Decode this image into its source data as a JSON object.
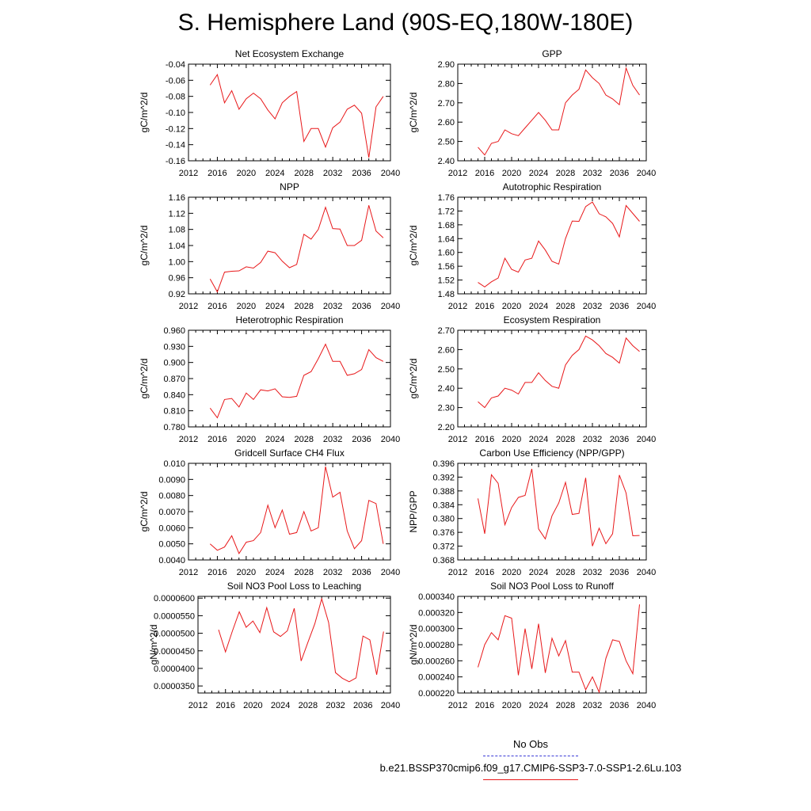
{
  "title": "S. Hemisphere Land (90S-EQ,180W-180E)",
  "legend": {
    "obs_label": "No Obs",
    "obs_color": "#3b3bd6",
    "run_label": "b.e21.BSSP370cmip6.f09_g17.CMIP6-SSP3-7.0-SSP1-2.6Lu.103",
    "run_color": "#e8181a"
  },
  "chart_data": [
    {
      "type": "line",
      "title": "Net Ecosystem Exchange",
      "ylabel": "gC/m^2/d",
      "xlim": [
        2012,
        2040
      ],
      "xticks": [
        "2012",
        "2016",
        "2020",
        "2024",
        "2028",
        "2032",
        "2036",
        "2040"
      ],
      "ylim": [
        -0.16,
        -0.04
      ],
      "yticks": [
        "-0.04",
        "-0.06",
        "-0.08",
        "-0.10",
        "-0.12",
        "-0.14",
        "-0.16"
      ],
      "series": [
        {
          "x": [
            2015,
            2016,
            2017,
            2018,
            2019,
            2020,
            2021,
            2022,
            2023,
            2024,
            2025,
            2026,
            2027,
            2028,
            2029,
            2030,
            2031,
            2032,
            2033,
            2034,
            2035,
            2036,
            2037,
            2038,
            2039
          ],
          "values": [
            -0.066,
            -0.053,
            -0.088,
            -0.073,
            -0.096,
            -0.083,
            -0.076,
            -0.083,
            -0.097,
            -0.108,
            -0.088,
            -0.08,
            -0.074,
            -0.136,
            -0.12,
            -0.12,
            -0.143,
            -0.119,
            -0.112,
            -0.096,
            -0.091,
            -0.101,
            -0.156,
            -0.093,
            -0.08
          ]
        }
      ]
    },
    {
      "type": "line",
      "title": "GPP",
      "ylabel": "gC/m^2/d",
      "xlim": [
        2012,
        2040
      ],
      "xticks": [
        "2012",
        "2016",
        "2020",
        "2024",
        "2028",
        "2032",
        "2036",
        "2040"
      ],
      "ylim": [
        2.4,
        2.9
      ],
      "yticks": [
        "2.90",
        "2.80",
        "2.70",
        "2.60",
        "2.50",
        "2.40"
      ],
      "series": [
        {
          "x": [
            2015,
            2016,
            2017,
            2018,
            2019,
            2020,
            2021,
            2022,
            2023,
            2024,
            2025,
            2026,
            2027,
            2028,
            2029,
            2030,
            2031,
            2032,
            2033,
            2034,
            2035,
            2036,
            2037,
            2038,
            2039
          ],
          "values": [
            2.47,
            2.43,
            2.49,
            2.5,
            2.56,
            2.54,
            2.53,
            2.57,
            2.61,
            2.65,
            2.61,
            2.56,
            2.56,
            2.7,
            2.74,
            2.77,
            2.87,
            2.83,
            2.8,
            2.74,
            2.72,
            2.69,
            2.88,
            2.79,
            2.74
          ]
        }
      ]
    },
    {
      "type": "line",
      "title": "NPP",
      "ylabel": "gC/m^2/d",
      "xlim": [
        2012,
        2040
      ],
      "xticks": [
        "2012",
        "2016",
        "2020",
        "2024",
        "2028",
        "2032",
        "2036",
        "2040"
      ],
      "ylim": [
        0.92,
        1.16
      ],
      "yticks": [
        "1.16",
        "1.12",
        "1.08",
        "1.04",
        "1.00",
        "0.96",
        "0.92"
      ],
      "series": [
        {
          "x": [
            2015,
            2016,
            2017,
            2018,
            2019,
            2020,
            2021,
            2022,
            2023,
            2024,
            2025,
            2026,
            2027,
            2028,
            2029,
            2030,
            2031,
            2032,
            2033,
            2034,
            2035,
            2036,
            2037,
            2038,
            2039
          ],
          "values": [
            0.957,
            0.925,
            0.974,
            0.976,
            0.977,
            0.987,
            0.984,
            0.998,
            1.026,
            1.022,
            1.001,
            0.985,
            0.993,
            1.068,
            1.056,
            1.08,
            1.135,
            1.082,
            1.081,
            1.04,
            1.04,
            1.053,
            1.14,
            1.076,
            1.059
          ]
        }
      ]
    },
    {
      "type": "line",
      "title": "Autotrophic Respiration",
      "ylabel": "gC/m^2/d",
      "xlim": [
        2012,
        2040
      ],
      "xticks": [
        "2012",
        "2016",
        "2020",
        "2024",
        "2028",
        "2032",
        "2036",
        "2040"
      ],
      "ylim": [
        1.48,
        1.76
      ],
      "yticks": [
        "1.76",
        "1.72",
        "1.68",
        "1.64",
        "1.60",
        "1.56",
        "1.52",
        "1.48"
      ],
      "series": [
        {
          "x": [
            2015,
            2016,
            2017,
            2018,
            2019,
            2020,
            2021,
            2022,
            2023,
            2024,
            2025,
            2026,
            2027,
            2028,
            2029,
            2030,
            2031,
            2032,
            2033,
            2034,
            2035,
            2036,
            2037,
            2038,
            2039
          ],
          "values": [
            1.513,
            1.5,
            1.515,
            1.526,
            1.583,
            1.551,
            1.543,
            1.578,
            1.583,
            1.633,
            1.607,
            1.574,
            1.566,
            1.64,
            1.691,
            1.69,
            1.733,
            1.746,
            1.712,
            1.703,
            1.684,
            1.645,
            1.736,
            1.713,
            1.69
          ]
        }
      ]
    },
    {
      "type": "line",
      "title": "Heterotrophic Respiration",
      "ylabel": "gC/m^2/d",
      "xlim": [
        2012,
        2040
      ],
      "xticks": [
        "2012",
        "2016",
        "2020",
        "2024",
        "2028",
        "2032",
        "2036",
        "2040"
      ],
      "ylim": [
        0.78,
        0.96
      ],
      "yticks": [
        "0.960",
        "0.930",
        "0.900",
        "0.870",
        "0.840",
        "0.810",
        "0.780"
      ],
      "series": [
        {
          "x": [
            2015,
            2016,
            2017,
            2018,
            2019,
            2020,
            2021,
            2022,
            2023,
            2024,
            2025,
            2026,
            2027,
            2028,
            2029,
            2030,
            2031,
            2032,
            2033,
            2034,
            2035,
            2036,
            2037,
            2038,
            2039
          ],
          "values": [
            0.815,
            0.797,
            0.831,
            0.833,
            0.817,
            0.843,
            0.831,
            0.849,
            0.847,
            0.851,
            0.836,
            0.835,
            0.837,
            0.876,
            0.883,
            0.907,
            0.934,
            0.902,
            0.902,
            0.876,
            0.879,
            0.887,
            0.924,
            0.909,
            0.902
          ]
        }
      ]
    },
    {
      "type": "line",
      "title": "Ecosystem Respiration",
      "ylabel": "gC/m^2/d",
      "xlim": [
        2012,
        2040
      ],
      "xticks": [
        "2012",
        "2016",
        "2020",
        "2024",
        "2028",
        "2032",
        "2036",
        "2040"
      ],
      "ylim": [
        2.2,
        2.7
      ],
      "yticks": [
        "2.70",
        "2.60",
        "2.50",
        "2.40",
        "2.30",
        "2.20"
      ],
      "series": [
        {
          "x": [
            2015,
            2016,
            2017,
            2018,
            2019,
            2020,
            2021,
            2022,
            2023,
            2024,
            2025,
            2026,
            2027,
            2028,
            2029,
            2030,
            2031,
            2032,
            2033,
            2034,
            2035,
            2036,
            2037,
            2038,
            2039
          ],
          "values": [
            2.33,
            2.3,
            2.35,
            2.36,
            2.4,
            2.39,
            2.37,
            2.43,
            2.43,
            2.48,
            2.44,
            2.41,
            2.4,
            2.52,
            2.57,
            2.6,
            2.67,
            2.65,
            2.62,
            2.58,
            2.56,
            2.53,
            2.66,
            2.62,
            2.59
          ]
        }
      ]
    },
    {
      "type": "line",
      "title": "Gridcell Surface CH4 Flux",
      "ylabel": "gC/m^2/d",
      "xlim": [
        2012,
        2040
      ],
      "xticks": [
        "2012",
        "2016",
        "2020",
        "2024",
        "2028",
        "2032",
        "2036",
        "2040"
      ],
      "ylim": [
        0.004,
        0.01
      ],
      "yticks": [
        "0.010",
        "0.0090",
        "0.0080",
        "0.0070",
        "0.0060",
        "0.0050",
        "0.0040"
      ],
      "series": [
        {
          "x": [
            2015,
            2016,
            2017,
            2018,
            2019,
            2020,
            2021,
            2022,
            2023,
            2024,
            2025,
            2026,
            2027,
            2028,
            2029,
            2030,
            2031,
            2032,
            2033,
            2034,
            2035,
            2036,
            2037,
            2038,
            2039
          ],
          "values": [
            0.005,
            0.0046,
            0.0048,
            0.0055,
            0.0044,
            0.0051,
            0.0052,
            0.0057,
            0.0074,
            0.006,
            0.0071,
            0.0056,
            0.0057,
            0.007,
            0.0058,
            0.006,
            0.0098,
            0.0079,
            0.0082,
            0.0058,
            0.0047,
            0.0052,
            0.0077,
            0.0075,
            0.005
          ]
        }
      ]
    },
    {
      "type": "line",
      "title": "Carbon Use Efficiency (NPP/GPP)",
      "ylabel": "NPP/GPP",
      "xlim": [
        2012,
        2040
      ],
      "xticks": [
        "2012",
        "2016",
        "2020",
        "2024",
        "2028",
        "2032",
        "2036",
        "2040"
      ],
      "ylim": [
        0.368,
        0.396
      ],
      "yticks": [
        "0.396",
        "0.392",
        "0.388",
        "0.384",
        "0.380",
        "0.376",
        "0.372",
        "0.368"
      ],
      "series": [
        {
          "x": [
            2015,
            2016,
            2017,
            2018,
            2019,
            2020,
            2021,
            2022,
            2023,
            2024,
            2025,
            2026,
            2027,
            2028,
            2029,
            2030,
            2031,
            2032,
            2033,
            2034,
            2035,
            2036,
            2037,
            2038,
            2039
          ],
          "values": [
            0.3858,
            0.3756,
            0.3927,
            0.3902,
            0.3782,
            0.3832,
            0.3861,
            0.3867,
            0.3944,
            0.377,
            0.3741,
            0.3808,
            0.3845,
            0.3905,
            0.3812,
            0.3815,
            0.3918,
            0.372,
            0.3772,
            0.3727,
            0.3756,
            0.3926,
            0.3874,
            0.375,
            0.3751
          ]
        }
      ]
    },
    {
      "type": "line",
      "title": "Soil NO3 Pool Loss to Leaching",
      "ylabel": "gN/m^2/d",
      "xlim": [
        2012,
        2040
      ],
      "xticks": [
        "2012",
        "2016",
        "2020",
        "2024",
        "2028",
        "2032",
        "2036",
        "2040"
      ],
      "ylim": [
        3.3e-05,
        6.05e-05
      ],
      "yticks": [
        "0.0000600",
        "0.0000550",
        "0.0000500",
        "0.0000450",
        "0.0000400",
        "0.0000350"
      ],
      "series": [
        {
          "x": [
            2015,
            2016,
            2017,
            2018,
            2019,
            2020,
            2021,
            2022,
            2023,
            2024,
            2025,
            2026,
            2027,
            2028,
            2029,
            2030,
            2031,
            2032,
            2033,
            2034,
            2035,
            2036,
            2037,
            2038,
            2039
          ],
          "values": [
            5.1e-05,
            4.47e-05,
            5.06e-05,
            5.61e-05,
            5.17e-05,
            5.35e-05,
            5.02e-05,
            5.73e-05,
            5.04e-05,
            4.91e-05,
            5.07e-05,
            5.71e-05,
            4.21e-05,
            4.75e-05,
            5.27e-05,
            5.98e-05,
            5.31e-05,
            3.88e-05,
            3.72e-05,
            3.62e-05,
            3.73e-05,
            4.92e-05,
            4.81e-05,
            3.82e-05,
            5.05e-05
          ]
        }
      ]
    },
    {
      "type": "line",
      "title": "Soil NO3 Pool Loss to Runoff",
      "ylabel": "gN/m^2/d",
      "xlim": [
        2012,
        2040
      ],
      "xticks": [
        "2012",
        "2016",
        "2020",
        "2024",
        "2028",
        "2032",
        "2036",
        "2040"
      ],
      "ylim": [
        0.00022,
        0.00034
      ],
      "yticks": [
        "0.000340",
        "0.000320",
        "0.000300",
        "0.000280",
        "0.000260",
        "0.000240",
        "0.000220"
      ],
      "series": [
        {
          "x": [
            2015,
            2016,
            2017,
            2018,
            2019,
            2020,
            2021,
            2022,
            2023,
            2024,
            2025,
            2026,
            2027,
            2028,
            2029,
            2030,
            2031,
            2032,
            2033,
            2034,
            2035,
            2036,
            2037,
            2038,
            2039
          ],
          "values": [
            0.000252,
            0.00028,
            0.000295,
            0.000286,
            0.000316,
            0.000313,
            0.000242,
            0.0003,
            0.00025,
            0.000306,
            0.000245,
            0.000288,
            0.000266,
            0.000285,
            0.000246,
            0.000246,
            0.000224,
            0.00024,
            0.000221,
            0.000263,
            0.000286,
            0.000284,
            0.00026,
            0.000244,
            0.00033
          ]
        }
      ]
    }
  ]
}
